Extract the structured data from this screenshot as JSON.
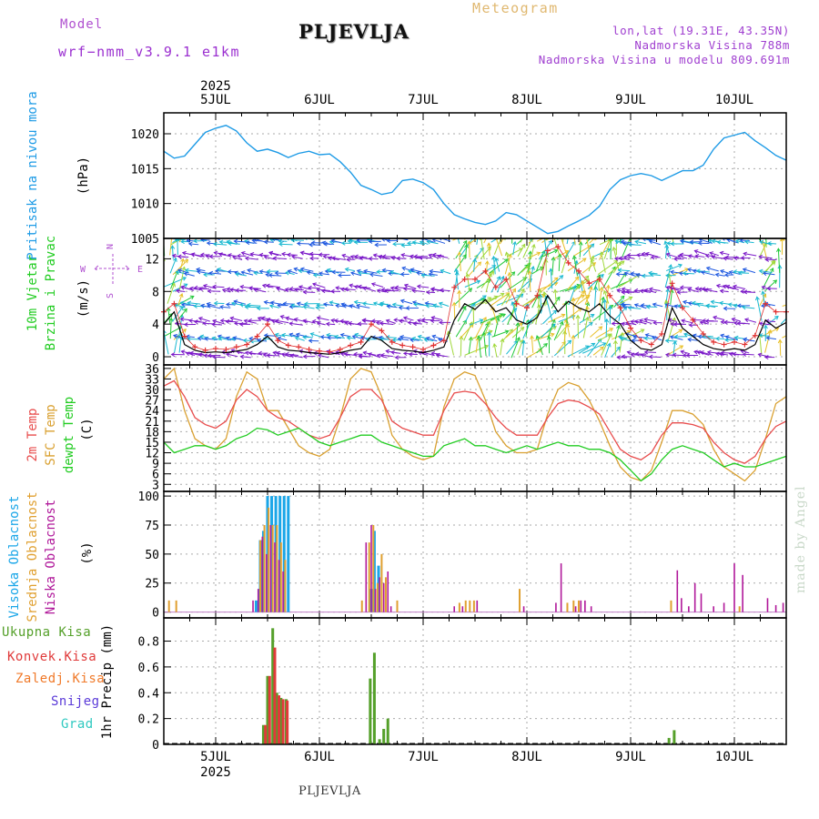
{
  "header": {
    "model_label": "Model",
    "model_name": "wrf−nmm_v3.9.1  e1km",
    "location": "PLJEVLJA",
    "meteogram": "Meteogram",
    "lonlat": "lon,lat (19.31E, 43.35N)",
    "altitude": "Nadmorska Visina 788m",
    "altitude_model": "Nadmorska Visina u modelu 809.691m",
    "footer_location": "PLJEVLJA",
    "watermark": "made by Angel"
  },
  "colors": {
    "pressure": "#1e9be6",
    "temp2m": "#e84c4c",
    "sfc_temp": "#d9a030",
    "dewpoint": "#22cc22",
    "wind_speed": "#000000",
    "gust": "#e03030",
    "high_cloud": "#1aa6e8",
    "mid_cloud": "#e0a030",
    "low_cloud": "#b0189a",
    "total_precip": "#55a02a",
    "convective": "#e03a3a",
    "frozen": "#f07a2a",
    "snow": "#5a3ad8",
    "hail": "#2fc9c0",
    "arrow_palette": [
      "#7a18c8",
      "#1e58e0",
      "#18b8d0",
      "#22c83a",
      "#a0d83a",
      "#e8c02a",
      "#e87a2a"
    ]
  },
  "chart_data": [
    {
      "type": "line",
      "panel": "pressure",
      "ylabel_side": "Pritisak na nivou mora",
      "ylabel_unit": "(hPa)",
      "ylim": [
        1005,
        1023
      ],
      "yticks": [
        1005,
        1010,
        1015,
        1020
      ],
      "grid": true,
      "x_days": [
        4.5,
        4.6,
        4.7,
        4.8,
        4.9,
        5.0,
        5.1,
        5.2,
        5.3,
        5.4,
        5.5,
        5.6,
        5.7,
        5.8,
        5.9,
        6.0,
        6.1,
        6.2,
        6.3,
        6.4,
        6.5,
        6.6,
        6.7,
        6.8,
        6.9,
        7.0,
        7.1,
        7.2,
        7.3,
        7.4,
        7.5,
        7.6,
        7.7,
        7.8,
        7.9,
        8.0,
        8.1,
        8.2,
        8.3,
        8.4,
        8.5,
        8.6,
        8.7,
        8.8,
        8.9,
        9.0,
        9.1,
        9.2,
        9.3,
        9.4,
        9.5,
        9.6,
        9.7,
        9.8,
        9.9,
        10.0,
        10.1,
        10.2,
        10.3,
        10.4,
        10.5
      ],
      "series": [
        {
          "values": [
            1017.5,
            1016.5,
            1016.8,
            1018.5,
            1020.2,
            1020.8,
            1021.2,
            1020.4,
            1018.7,
            1017.5,
            1017.8,
            1017.3,
            1016.6,
            1017.2,
            1017.5,
            1017.0,
            1017.1,
            1016.0,
            1014.5,
            1012.6,
            1012.0,
            1011.3,
            1011.6,
            1013.3,
            1013.5,
            1013.0,
            1012.0,
            1010.0,
            1008.4,
            1007.8,
            1007.3,
            1007.0,
            1007.5,
            1008.7,
            1008.4,
            1007.5,
            1006.6,
            1005.7,
            1006.0,
            1006.8,
            1007.5,
            1008.3,
            1009.6,
            1012.0,
            1013.4,
            1014.0,
            1014.3,
            1014.0,
            1013.3,
            1014.0,
            1014.7,
            1014.7,
            1015.5,
            1017.8,
            1019.4,
            1019.8,
            1020.2,
            1019.0,
            1018.0,
            1016.9,
            1016.2
          ]
        }
      ]
    },
    {
      "type": "line",
      "panel": "wind",
      "ylabel_side": [
        "10m Vjetar",
        "Brzina i Pravac"
      ],
      "ylabel_unit": "(m/s)",
      "compass": {
        "N": "N",
        "S": "S",
        "E": "E",
        "W": "W"
      },
      "ylim": [
        -1,
        14.5
      ],
      "yticks": [
        0,
        4,
        8,
        12
      ],
      "grid": true,
      "x_days": [
        4.5,
        4.6,
        4.7,
        4.8,
        4.9,
        5.0,
        5.1,
        5.2,
        5.3,
        5.4,
        5.5,
        5.6,
        5.7,
        5.8,
        5.9,
        6.0,
        6.1,
        6.2,
        6.3,
        6.4,
        6.5,
        6.6,
        6.7,
        6.8,
        6.9,
        7.0,
        7.1,
        7.2,
        7.3,
        7.4,
        7.5,
        7.6,
        7.7,
        7.8,
        7.9,
        8.0,
        8.1,
        8.2,
        8.3,
        8.4,
        8.5,
        8.6,
        8.7,
        8.8,
        8.9,
        9.0,
        9.1,
        9.2,
        9.3,
        9.4,
        9.5,
        9.6,
        9.7,
        9.8,
        9.9,
        10.0,
        10.1,
        10.2,
        10.3,
        10.4,
        10.5
      ],
      "series": [
        {
          "name": "speed",
          "values": [
            4.0,
            5.5,
            1.5,
            0.8,
            0.5,
            0.6,
            0.5,
            0.7,
            0.9,
            1.5,
            2.5,
            1.2,
            0.8,
            0.7,
            0.5,
            0.4,
            0.3,
            0.5,
            0.8,
            1.0,
            2.5,
            2.0,
            1.0,
            0.8,
            0.7,
            0.5,
            0.8,
            1.2,
            4.5,
            6.5,
            5.8,
            7.0,
            5.5,
            6.0,
            4.5,
            4.0,
            4.8,
            7.5,
            5.5,
            6.8,
            6.0,
            5.5,
            6.5,
            5.0,
            4.0,
            2.0,
            1.0,
            0.8,
            1.5,
            6.0,
            3.5,
            2.5,
            1.5,
            1.0,
            0.8,
            1.0,
            0.8,
            1.5,
            4.5,
            3.5,
            4.2
          ]
        },
        {
          "name": "gust",
          "values": [
            5.5,
            6.5,
            2.5,
            1.2,
            0.8,
            1.0,
            0.9,
            1.2,
            1.5,
            2.5,
            4.0,
            2.0,
            1.4,
            1.2,
            0.9,
            0.7,
            0.6,
            0.9,
            1.4,
            1.8,
            4.0,
            3.2,
            1.8,
            1.4,
            1.2,
            0.9,
            1.4,
            2.0,
            8.5,
            9.5,
            9.5,
            10.5,
            8.5,
            9.5,
            6.5,
            6.0,
            7.5,
            13.0,
            13.5,
            11.5,
            10.5,
            9.0,
            9.5,
            7.5,
            6.0,
            3.5,
            2.0,
            1.5,
            2.8,
            9.0,
            6.0,
            4.5,
            2.8,
            1.8,
            1.5,
            1.8,
            1.5,
            2.6,
            6.5,
            5.5,
            5.5
          ]
        }
      ]
    },
    {
      "type": "line",
      "panel": "temperature",
      "ylabel_side": [
        "2m Temp",
        "SFC Temp",
        "dewpt Temp"
      ],
      "ylabel_unit": "(C)",
      "ylim": [
        1,
        37
      ],
      "yticks": [
        3,
        6,
        9,
        12,
        15,
        18,
        21,
        24,
        27,
        30,
        33,
        36
      ],
      "grid": true,
      "x_days": [
        4.5,
        4.6,
        4.7,
        4.8,
        4.9,
        5.0,
        5.1,
        5.2,
        5.3,
        5.4,
        5.5,
        5.6,
        5.7,
        5.8,
        5.9,
        6.0,
        6.1,
        6.2,
        6.3,
        6.4,
        6.5,
        6.6,
        6.7,
        6.8,
        6.9,
        7.0,
        7.1,
        7.2,
        7.3,
        7.4,
        7.5,
        7.6,
        7.7,
        7.8,
        7.9,
        8.0,
        8.1,
        8.2,
        8.3,
        8.4,
        8.5,
        8.6,
        8.7,
        8.8,
        8.9,
        9.0,
        9.1,
        9.2,
        9.3,
        9.4,
        9.5,
        9.6,
        9.7,
        9.8,
        9.9,
        10.0,
        10.1,
        10.2,
        10.3,
        10.4,
        10.5
      ],
      "series": [
        {
          "name": "2m Temp",
          "values": [
            31,
            32.5,
            28,
            22,
            20,
            19,
            21,
            27,
            30,
            28,
            24,
            22,
            21,
            19,
            17,
            16,
            17,
            22,
            28,
            30,
            30,
            27,
            21,
            19,
            18,
            17,
            17,
            24,
            29,
            29.5,
            29,
            26,
            22,
            19,
            17,
            17,
            17,
            22,
            26,
            27,
            26.5,
            25,
            23,
            18,
            13,
            11,
            10,
            12,
            17,
            20.5,
            20.5,
            20,
            19,
            15,
            12,
            10,
            9,
            11,
            16,
            19.5,
            21
          ]
        },
        {
          "name": "SFC Temp",
          "values": [
            33,
            36,
            24,
            16,
            14,
            13,
            16,
            28,
            35,
            33,
            24,
            24,
            19,
            14,
            12,
            11,
            13,
            22,
            33,
            36,
            35,
            28,
            17,
            13,
            11,
            10,
            11,
            25,
            33,
            35,
            34,
            27,
            18,
            14,
            12,
            12,
            13,
            23,
            30,
            32,
            31,
            27,
            21,
            14,
            8,
            5,
            4,
            7,
            15,
            24,
            24,
            23,
            20,
            13,
            8,
            6,
            4,
            7,
            16,
            26,
            28
          ]
        },
        {
          "name": "dewpt Temp",
          "values": [
            15,
            12,
            13,
            14,
            14,
            13,
            14,
            16,
            17,
            19,
            18.5,
            17,
            18,
            19,
            17,
            15,
            14,
            15,
            16,
            17,
            17,
            15,
            14,
            13,
            12,
            11,
            11,
            14,
            15,
            16,
            14,
            14,
            13,
            12,
            13,
            14,
            13,
            14,
            15,
            14,
            14,
            13,
            13,
            12,
            10,
            7,
            4,
            6,
            10,
            13,
            14,
            13,
            12,
            10,
            8,
            9,
            8,
            8,
            9,
            10,
            11
          ]
        }
      ]
    },
    {
      "type": "bar",
      "panel": "cloud",
      "ylabel_side": [
        "Visoka Oblacnost",
        "Srednja Oblacnost",
        "Niska Oblacnost"
      ],
      "ylabel_unit": "(%)",
      "ylim": [
        -5,
        104
      ],
      "yticks": [
        0,
        25,
        50,
        75,
        100
      ],
      "grid": true,
      "series": [
        {
          "name": "Visoka Oblacnost",
          "x": [
            5.39,
            5.43,
            5.46,
            5.5,
            5.54,
            5.58,
            5.62,
            5.66,
            5.7,
            6.5,
            6.53,
            6.57
          ],
          "values": [
            10,
            62,
            70,
            100,
            100,
            100,
            100,
            100,
            100,
            20,
            70,
            40
          ]
        },
        {
          "name": "Srednja Oblacnost",
          "x": [
            4.55,
            4.62,
            5.43,
            5.47,
            5.51,
            5.55,
            5.59,
            5.63,
            5.67,
            6.41,
            6.48,
            6.52,
            6.56,
            6.6,
            6.64,
            6.75,
            7.35,
            7.41,
            7.45,
            7.49,
            7.93,
            8.39,
            8.45,
            8.5,
            9.39,
            10.05
          ],
          "values": [
            10,
            10,
            62,
            75,
            90,
            75,
            75,
            60,
            45,
            10,
            60,
            75,
            25,
            50,
            30,
            10,
            8,
            10,
            10,
            10,
            20,
            8,
            10,
            10,
            10,
            5
          ]
        },
        {
          "name": "Niska Oblacnost",
          "x": [
            5.36,
            5.41,
            5.45,
            5.49,
            5.53,
            5.57,
            5.61,
            5.65,
            6.45,
            6.5,
            6.54,
            6.58,
            6.62,
            6.66,
            6.69,
            7.3,
            7.38,
            7.52,
            7.97,
            8.28,
            8.33,
            8.47,
            8.52,
            8.56,
            8.62,
            9.45,
            9.49,
            9.56,
            9.62,
            9.68,
            9.8,
            9.9,
            10.0,
            10.08,
            10.32,
            10.4,
            10.47
          ],
          "values": [
            10,
            20,
            65,
            50,
            75,
            60,
            45,
            35,
            60,
            75,
            20,
            30,
            25,
            35,
            5,
            5,
            5,
            10,
            5,
            8,
            42,
            5,
            10,
            10,
            5,
            36,
            12,
            5,
            25,
            16,
            5,
            8,
            42,
            32,
            12,
            6,
            8
          ]
        }
      ]
    },
    {
      "type": "bar",
      "panel": "precip",
      "ylabel_side": [
        "Ukupna Kisa",
        "Konvek.Kisa",
        "Zaledj.Kisa",
        "Snijeg",
        "Grad"
      ],
      "ylabel_unit": "1hr Precip (mm)",
      "ylim": [
        0,
        0.98
      ],
      "yticks": [
        0,
        0.2,
        0.4,
        0.6,
        0.8
      ],
      "ytick_labels": [
        "0",
        "0.2",
        "0.4",
        "0.6",
        "0.8"
      ],
      "grid": true,
      "series": [
        {
          "name": "Ukupna Kisa",
          "x": [
            5.46,
            5.5,
            5.55,
            5.59,
            5.63,
            5.68,
            6.49,
            6.53,
            6.58,
            6.62,
            6.66,
            9.37,
            9.42
          ],
          "values": [
            0.15,
            0.53,
            0.9,
            0.4,
            0.36,
            0.35,
            0.51,
            0.71,
            0.04,
            0.12,
            0.2,
            0.05,
            0.11
          ]
        },
        {
          "name": "Konvek.Kisa",
          "x": [
            5.48,
            5.52,
            5.57,
            5.61,
            5.65,
            5.69
          ],
          "values": [
            0.15,
            0.53,
            0.75,
            0.38,
            0.35,
            0.34
          ]
        }
      ]
    }
  ],
  "time_axis": {
    "year": "2025",
    "day_labels": [
      "5JUL",
      "6JUL",
      "7JUL",
      "8JUL",
      "9JUL",
      "10JUL"
    ],
    "day_values": [
      5,
      6,
      7,
      8,
      9,
      10
    ],
    "xlim": [
      4.5,
      10.5
    ]
  }
}
